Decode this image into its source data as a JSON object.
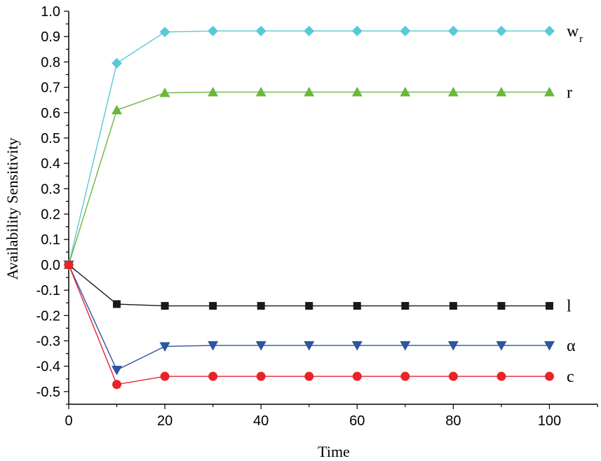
{
  "chart_data": {
    "type": "line",
    "title": "",
    "xlabel": "Time",
    "ylabel": "Availability Sensitivity",
    "xlim": [
      0,
      110
    ],
    "ylim": [
      -0.55,
      1.0
    ],
    "x_ticks": [
      0,
      20,
      40,
      60,
      80,
      100
    ],
    "x_tick_labels": [
      "0",
      "20",
      "40",
      "60",
      "80",
      "100"
    ],
    "y_ticks": [
      1.0,
      0.9,
      0.8,
      0.7,
      0.6,
      0.5,
      0.4,
      0.3,
      0.2,
      0.1,
      0.0,
      -0.1,
      -0.2,
      -0.3,
      -0.4,
      -0.5
    ],
    "y_tick_labels": [
      "1.0",
      "0.9",
      "0.8",
      "0.7",
      "0.6",
      "0.5",
      "0.4",
      "0.3",
      "0.2",
      "0.1",
      "0.0",
      "-0.1",
      "-0.2",
      "-0.3",
      "-0.4",
      "-0.5"
    ],
    "grid": false,
    "legend": "none",
    "x": [
      0,
      10,
      20,
      30,
      40,
      50,
      60,
      70,
      80,
      90,
      100
    ],
    "series": [
      {
        "key": "wr",
        "label": "w",
        "label_sub": "r",
        "color": "#5bc8d6",
        "marker": "diamond",
        "values": [
          0.0,
          0.795,
          0.918,
          0.922,
          0.922,
          0.922,
          0.922,
          0.922,
          0.922,
          0.922,
          0.922
        ]
      },
      {
        "key": "r",
        "label": "r",
        "label_sub": "",
        "color": "#6ab73e",
        "marker": "triangle-up",
        "values": [
          0.0,
          0.61,
          0.678,
          0.681,
          0.681,
          0.681,
          0.681,
          0.681,
          0.681,
          0.681,
          0.681
        ]
      },
      {
        "key": "l",
        "label": "l",
        "label_sub": "",
        "color": "#1a1a1a",
        "marker": "square",
        "values": [
          0.0,
          -0.155,
          -0.162,
          -0.162,
          -0.162,
          -0.162,
          -0.162,
          -0.162,
          -0.162,
          -0.162,
          -0.162
        ]
      },
      {
        "key": "alpha",
        "label": "α",
        "label_sub": "",
        "color": "#2d55a0",
        "marker": "triangle-down",
        "values": [
          0.0,
          -0.415,
          -0.322,
          -0.318,
          -0.318,
          -0.318,
          -0.318,
          -0.318,
          -0.318,
          -0.318,
          -0.318
        ]
      },
      {
        "key": "c",
        "label": "c",
        "label_sub": "",
        "color": "#e8232a",
        "marker": "circle",
        "values": [
          0.0,
          -0.472,
          -0.44,
          -0.44,
          -0.44,
          -0.44,
          -0.44,
          -0.44,
          -0.44,
          -0.44,
          -0.44
        ]
      }
    ]
  }
}
